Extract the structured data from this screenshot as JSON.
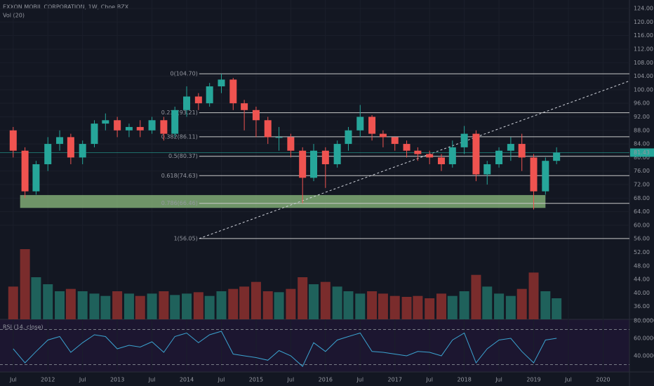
{
  "chart_data": [
    {
      "type": "candlestick",
      "title": "EXXON MOBIL CORPORATION, 1W, Cboe BZX",
      "x": [
        2011.5,
        2011.67,
        2011.83,
        2012,
        2012.17,
        2012.33,
        2012.5,
        2012.67,
        2012.83,
        2013,
        2013.17,
        2013.33,
        2013.5,
        2013.67,
        2013.83,
        2014,
        2014.17,
        2014.33,
        2014.5,
        2014.67,
        2014.83,
        2015,
        2015.17,
        2015.33,
        2015.5,
        2015.67,
        2015.83,
        2016,
        2016.17,
        2016.33,
        2016.5,
        2016.67,
        2016.83,
        2017,
        2017.17,
        2017.33,
        2017.5,
        2017.67,
        2017.83,
        2018,
        2018.17,
        2018.33,
        2018.5,
        2018.67,
        2018.83,
        2019,
        2019.17,
        2019.33
      ],
      "open": [
        88,
        82,
        70,
        78,
        84,
        86,
        80,
        84,
        90,
        91,
        88,
        89,
        88,
        91,
        87,
        94,
        98,
        96,
        101,
        103,
        96,
        94,
        91,
        86,
        86,
        82,
        74,
        82,
        78,
        84,
        88,
        92,
        87,
        86,
        84,
        82,
        81,
        80,
        78,
        83,
        87,
        75,
        78,
        82,
        84,
        80,
        70,
        79
      ],
      "high": [
        89,
        83,
        79,
        86,
        88,
        87,
        85,
        91,
        93,
        92,
        90,
        91,
        92,
        92,
        95,
        101,
        99,
        102,
        104.7,
        103.5,
        97,
        95,
        92,
        89,
        87,
        83,
        84,
        83,
        85,
        89,
        95.5,
        92.5,
        88,
        86,
        85,
        83,
        82,
        81,
        85,
        89.3,
        88,
        79,
        83,
        86,
        87,
        81,
        80,
        83
      ],
      "low": [
        80,
        68,
        69,
        76,
        82,
        78,
        78,
        83,
        88,
        86,
        86,
        86,
        87,
        85,
        86,
        92,
        94,
        95,
        99,
        94,
        88,
        86,
        84,
        82,
        80,
        66.5,
        73,
        71,
        77,
        82,
        86,
        85,
        83,
        82,
        80,
        79,
        78,
        76,
        77,
        81,
        73,
        72,
        77,
        79,
        76,
        64.65,
        69,
        78
      ],
      "close": [
        82,
        70,
        78,
        84,
        86,
        80,
        84,
        90,
        91,
        88,
        89,
        88,
        91,
        87,
        94,
        98,
        96,
        101,
        103,
        96,
        94,
        91,
        86,
        86,
        82,
        74,
        82,
        78,
        84,
        88,
        92,
        87,
        86,
        84,
        82,
        81,
        80,
        78,
        83,
        87,
        75,
        78,
        82,
        84,
        80,
        70,
        79,
        81.43
      ],
      "up_color": "#26a69a",
      "down_color": "#ef5350",
      "xlim": [
        2011.31,
        2020.38
      ],
      "xticks": [
        {
          "value": 2011.5,
          "label": "Jul"
        },
        2012,
        {
          "value": 2012.5,
          "label": "Jul"
        },
        2013,
        {
          "value": 2013.5,
          "label": "Jul"
        },
        2014,
        {
          "value": 2014.5,
          "label": "Jul"
        },
        2015,
        {
          "value": 2015.5,
          "label": "Jul"
        },
        2016,
        {
          "value": 2016.5,
          "label": "Jul"
        },
        2017,
        {
          "value": 2017.5,
          "label": "Jul"
        },
        2018,
        {
          "value": 2018.5,
          "label": "Jul"
        },
        2019,
        {
          "value": 2019.5,
          "label": "Jul"
        },
        2020
      ],
      "ylim": [
        32.2,
        126.5
      ],
      "yticks": [
        {
          "value": 124,
          "label": "124.00"
        },
        {
          "value": 120,
          "label": "120.00"
        },
        {
          "value": 116,
          "label": "116.00"
        },
        {
          "value": 112,
          "label": "112.00"
        },
        {
          "value": 108,
          "label": "108.00"
        },
        {
          "value": 104,
          "label": "104.00"
        },
        {
          "value": 100,
          "label": "100.00"
        },
        {
          "value": 96,
          "label": "96.00"
        },
        {
          "value": 92,
          "label": "92.00"
        },
        {
          "value": 88,
          "label": "88.00"
        },
        {
          "value": 84,
          "label": "84.00"
        },
        {
          "value": 80,
          "label": "80.00"
        },
        {
          "value": 76,
          "label": "76.00"
        },
        {
          "value": 72,
          "label": "72.00"
        },
        {
          "value": 68,
          "label": "68.00"
        },
        {
          "value": 64,
          "label": "64.00"
        },
        {
          "value": 60,
          "label": "60.00"
        },
        {
          "value": 56,
          "label": "56.00"
        },
        {
          "value": 52,
          "label": "52.00"
        },
        {
          "value": 48,
          "label": "48.00"
        },
        {
          "value": 44,
          "label": "44.00"
        },
        {
          "value": 40,
          "label": "40.00"
        },
        {
          "value": 36,
          "label": "36.00"
        }
      ],
      "fib_start": 2014.18,
      "fib_levels": [
        {
          "value": 104.7,
          "label": "0(104.70)"
        },
        {
          "value": 93.21,
          "label": "0.236(93.21)"
        },
        {
          "value": 86.11,
          "label": "0.382(86.11)"
        },
        {
          "value": 80.37,
          "label": "0.5(80.37)"
        },
        {
          "value": 74.63,
          "label": "0.618(74.63)"
        },
        {
          "value": 66.46,
          "label": "0.786(66.46)"
        },
        {
          "value": 56.05,
          "label": "1(56.05)"
        }
      ],
      "zone": {
        "x": [
          2011.6,
          2019.17
        ],
        "y": [
          65.1,
          68.9
        ],
        "color": "#8fbf80"
      },
      "trendline": {
        "x": [
          2014.18,
          2020.38
        ],
        "y": [
          56.05,
          102.6
        ]
      },
      "grid": true
    },
    {
      "type": "bar",
      "title": "Vol (20)",
      "values": [
        70,
        150,
        90,
        75,
        60,
        65,
        60,
        55,
        50,
        60,
        55,
        50,
        55,
        60,
        52,
        55,
        58,
        50,
        60,
        65,
        70,
        80,
        60,
        58,
        65,
        90,
        75,
        80,
        70,
        60,
        55,
        60,
        55,
        50,
        48,
        50,
        45,
        55,
        50,
        60,
        95,
        70,
        55,
        50,
        65,
        100,
        60,
        45
      ],
      "up_color": "#1f615b",
      "down_color": "#7a2c2c",
      "ylim": [
        0,
        180
      ]
    },
    {
      "type": "line",
      "title": "RSI (14, close)",
      "values": [
        48,
        32,
        45,
        58,
        62,
        44,
        55,
        64,
        62,
        48,
        52,
        50,
        56,
        44,
        62,
        66,
        55,
        64,
        68,
        42,
        40,
        38,
        35,
        46,
        40,
        28,
        55,
        45,
        58,
        62,
        66,
        45,
        44,
        42,
        40,
        45,
        44,
        40,
        58,
        66,
        32,
        48,
        58,
        60,
        45,
        32,
        58,
        60
      ],
      "color": "#3ba3d0",
      "ylim": [
        21.6,
        81.6
      ],
      "yticks": [
        {
          "value": 80,
          "label": "80.0000"
        },
        {
          "value": 60,
          "label": "60.0000"
        },
        {
          "value": 40,
          "label": "40.0000"
        }
      ],
      "bands": [
        30,
        70
      ]
    }
  ]
}
